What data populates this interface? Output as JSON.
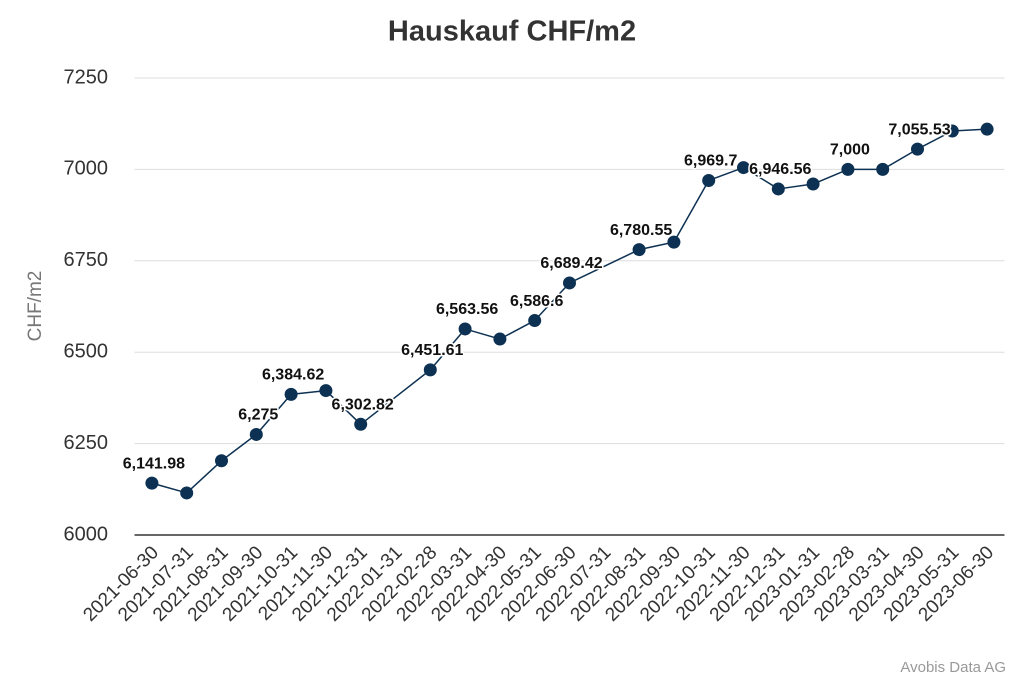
{
  "chart_data": {
    "type": "line",
    "title": "Hauskauf CHF/m2",
    "y_label": "CHF/m2",
    "source": "Avobis Data AG",
    "categories": [
      "2021-06-30",
      "2021-07-31",
      "2021-08-31",
      "2021-09-30",
      "2021-10-31",
      "2021-11-30",
      "2021-12-31",
      "2022-01-31",
      "2022-02-28",
      "2022-03-31",
      "2022-04-30",
      "2022-05-31",
      "2022-06-30",
      "2022-07-31",
      "2022-08-31",
      "2022-09-30",
      "2022-10-31",
      "2022-11-30",
      "2022-12-31",
      "2023-01-31",
      "2023-02-28",
      "2023-03-31",
      "2023-04-30",
      "2023-05-31",
      "2023-06-30"
    ],
    "values": [
      6141.98,
      6115,
      6203,
      6275,
      6384.62,
      6395,
      6302.82,
      null,
      6451.61,
      6563.56,
      6536,
      6586.6,
      6689.42,
      null,
      6780.55,
      6801,
      6969.7,
      7005,
      6946.56,
      6960,
      7000,
      7000,
      7055.53,
      7105,
      7110
    ],
    "value_labels": [
      "6,141.98",
      null,
      null,
      "6,275",
      "6,384.62",
      null,
      "6,302.82",
      null,
      "6,451.61",
      "6,563.56",
      null,
      "6,586.6",
      "6,689.42",
      null,
      "6,780.55",
      null,
      "6,969.7",
      null,
      "6,946.56",
      null,
      "7,000",
      null,
      "7,055.53",
      null,
      null
    ],
    "color": "#0d3152",
    "ylim": [
      6000,
      7250
    ],
    "yticks": [
      6000,
      6250,
      6500,
      6750,
      7000,
      7250
    ],
    "grid": true
  }
}
